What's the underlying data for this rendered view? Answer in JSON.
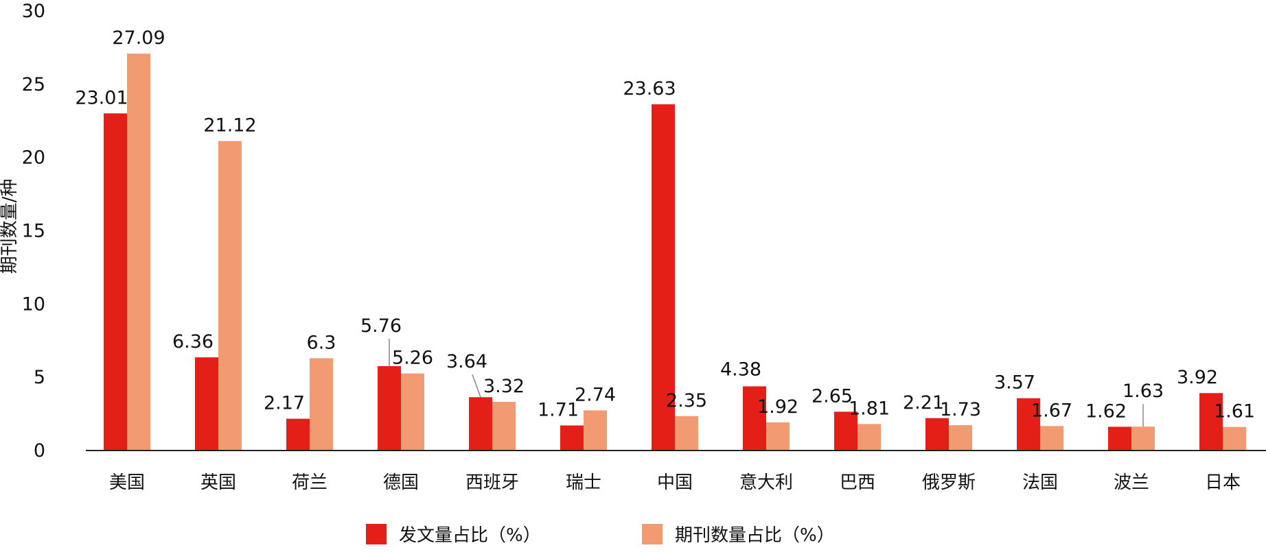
{
  "chart_data": {
    "type": "bar",
    "ylabel": "期刊数量/种",
    "xlabel": "",
    "ylim": [
      0,
      30
    ],
    "yticks": [
      0,
      5,
      10,
      15,
      20,
      25,
      30
    ],
    "categories": [
      "美国",
      "英国",
      "荷兰",
      "德国",
      "西班牙",
      "瑞士",
      "中国",
      "意大利",
      "巴西",
      "俄罗斯",
      "法国",
      "波兰",
      "日本"
    ],
    "series": [
      {
        "name": "发文量占比（%）",
        "color": "#e41f18",
        "values": [
          23.01,
          6.36,
          2.17,
          5.76,
          3.64,
          1.71,
          23.63,
          4.38,
          2.65,
          2.21,
          3.57,
          1.62,
          3.92
        ],
        "labels": [
          "23.01",
          "6.36",
          "2.17",
          "5.76",
          "3.64",
          "1.71",
          "23.63",
          "4.38",
          "2.65",
          "2.21",
          "3.57",
          "1.62",
          "3.92"
        ]
      },
      {
        "name": "期刊数量占比（%）",
        "color": "#f29a72",
        "values": [
          27.09,
          21.12,
          6.3,
          5.26,
          3.32,
          2.74,
          2.35,
          1.92,
          1.81,
          1.73,
          1.67,
          1.63,
          1.61
        ],
        "labels": [
          "27.09",
          "21.12",
          "6.3",
          "5.26",
          "3.32",
          "2.74",
          "2.35",
          "1.92",
          "1.81",
          "1.73",
          "1.67",
          "1.63",
          "1.61"
        ]
      }
    ],
    "grid": false,
    "legend_position": "bottom"
  },
  "legend": {
    "items": [
      {
        "label": "发文量占比（%）",
        "color": "#e41f18"
      },
      {
        "label": "期刊数量占比（%）",
        "color": "#f29a72"
      }
    ]
  }
}
